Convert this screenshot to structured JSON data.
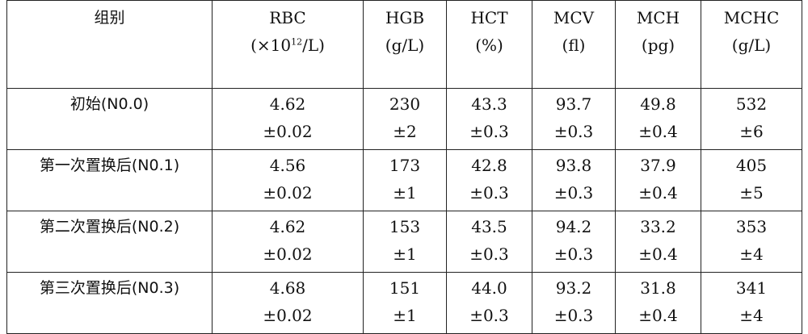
{
  "headers": [
    {
      "name": "组别",
      "unit": ""
    },
    {
      "name": "RBC",
      "unit_prefix": "(×10",
      "unit_exp": "12",
      "unit_suffix": "/L)"
    },
    {
      "name": "HGB",
      "unit": "(g/L)"
    },
    {
      "name": "HCT",
      "unit": "(%)"
    },
    {
      "name": "MCV",
      "unit": "(fl)"
    },
    {
      "name": "MCH",
      "unit": "(pg)"
    },
    {
      "name": "MCHC",
      "unit": "(g/L)"
    }
  ],
  "rows": [
    {
      "group": "初始(N0.0)",
      "cells": [
        [
          "4.62",
          "±0.02"
        ],
        [
          "230",
          "±2"
        ],
        [
          "43.3",
          "±0.3"
        ],
        [
          "93.7",
          "±0.3"
        ],
        [
          "49.8",
          "±0.4"
        ],
        [
          "532",
          "±6"
        ]
      ]
    },
    {
      "group": "第一次置换后(N0.1)",
      "cells": [
        [
          "4.56",
          "±0.02"
        ],
        [
          "173",
          "±1"
        ],
        [
          "42.8",
          "±0.3"
        ],
        [
          "93.8",
          "±0.3"
        ],
        [
          "37.9",
          "±0.4"
        ],
        [
          "405",
          "±5"
        ]
      ]
    },
    {
      "group": "第二次置换后(N0.2)",
      "cells": [
        [
          "4.62",
          "±0.02"
        ],
        [
          "153",
          "±1"
        ],
        [
          "43.5",
          "±0.3"
        ],
        [
          "94.2",
          "±0.3"
        ],
        [
          "33.2",
          "±0.4"
        ],
        [
          "353",
          "±4"
        ]
      ]
    },
    {
      "group": "第三次置换后(N0.3)",
      "cells": [
        [
          "4.68",
          "±0.02"
        ],
        [
          "151",
          "±1"
        ],
        [
          "44.0",
          "±0.3"
        ],
        [
          "93.2",
          "±0.3"
        ],
        [
          "31.8",
          "±0.4"
        ],
        [
          "341",
          "±4"
        ]
      ]
    }
  ]
}
